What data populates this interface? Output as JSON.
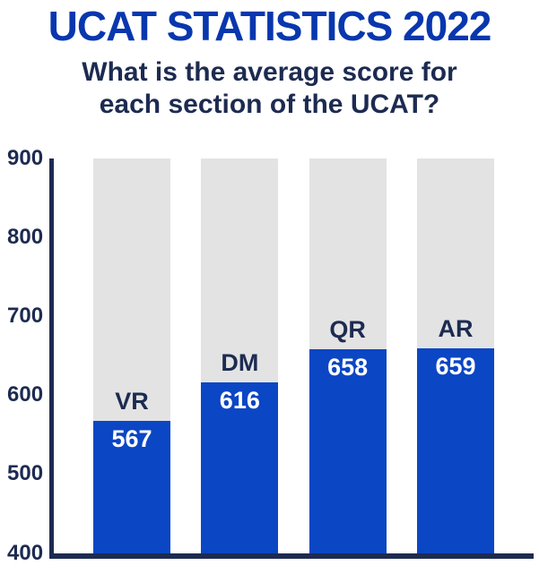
{
  "header": {
    "title": "UCAT STATISTICS 2022",
    "subtitle": "What is the average score for\neach section of the UCAT?"
  },
  "chart_data": {
    "type": "bar",
    "categories": [
      "VR",
      "DM",
      "QR",
      "AR"
    ],
    "values": [
      567,
      616,
      658,
      659
    ],
    "title": "What is the average score for each section of the UCAT?",
    "xlabel": "",
    "ylabel": "",
    "ylim": [
      400,
      900
    ],
    "yticks": [
      400,
      500,
      600,
      700,
      800,
      900
    ],
    "grid": false,
    "legend": "none",
    "bar_track_max": 900
  },
  "colors": {
    "title_blue": "#0837ae",
    "bar_blue": "#0b46c4",
    "navy": "#1d2b51",
    "track_gray": "#e3e3e3",
    "value_text": "#ffffff"
  }
}
